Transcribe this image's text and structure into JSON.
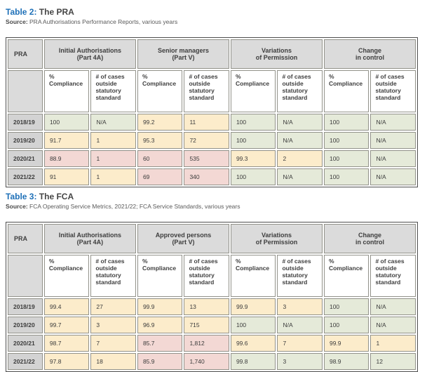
{
  "colors": {
    "title_blue": "#1e70b8",
    "header_gray": "#dbdbdb",
    "year_gray": "#d3d3d3",
    "status_green": "#e5ead9",
    "status_yellow": "#fceccb",
    "status_pink": "#f3d8d4",
    "border_outer": "#4e4e4e",
    "border_inner": "#92928a"
  },
  "subheaders": {
    "compliance": "% Compliance",
    "cases": "# of cases outside statutory standard"
  },
  "tables": [
    {
      "title_label": "Table 2:",
      "title_text": " The PRA",
      "source_label": "Source:",
      "source_text": " PRA Authorisations Performance Reports, various years",
      "corner": "PRA",
      "groups": [
        {
          "l1": "Initial Authorisations",
          "l2": "(Part 4A)"
        },
        {
          "l1": "Senior managers",
          "l2": "(Part V)"
        },
        {
          "l1": "Variations",
          "l2": "of Permission"
        },
        {
          "l1": "Change",
          "l2": "in control"
        }
      ],
      "rows": [
        {
          "year": "2018/19",
          "cells": [
            {
              "v": "100",
              "c": "green"
            },
            {
              "v": "N/A",
              "c": "green"
            },
            {
              "v": "99.2",
              "c": "yellow"
            },
            {
              "v": "11",
              "c": "yellow"
            },
            {
              "v": "100",
              "c": "green"
            },
            {
              "v": "N/A",
              "c": "green"
            },
            {
              "v": "100",
              "c": "green"
            },
            {
              "v": "N/A",
              "c": "green"
            }
          ]
        },
        {
          "year": "2019/20",
          "cells": [
            {
              "v": "91.7",
              "c": "yellow"
            },
            {
              "v": "1",
              "c": "yellow"
            },
            {
              "v": "95.3",
              "c": "yellow"
            },
            {
              "v": "72",
              "c": "yellow"
            },
            {
              "v": "100",
              "c": "green"
            },
            {
              "v": "N/A",
              "c": "green"
            },
            {
              "v": "100",
              "c": "green"
            },
            {
              "v": "N/A",
              "c": "green"
            }
          ]
        },
        {
          "year": "2020/21",
          "cells": [
            {
              "v": "88.9",
              "c": "pink"
            },
            {
              "v": "1",
              "c": "pink"
            },
            {
              "v": "60",
              "c": "pink"
            },
            {
              "v": "535",
              "c": "pink"
            },
            {
              "v": "99.3",
              "c": "yellow"
            },
            {
              "v": "2",
              "c": "yellow"
            },
            {
              "v": "100",
              "c": "green"
            },
            {
              "v": "N/A",
              "c": "green"
            }
          ]
        },
        {
          "year": "2021/22",
          "cells": [
            {
              "v": "91",
              "c": "yellow"
            },
            {
              "v": "1",
              "c": "yellow"
            },
            {
              "v": "69",
              "c": "pink"
            },
            {
              "v": "340",
              "c": "pink"
            },
            {
              "v": "100",
              "c": "green"
            },
            {
              "v": "N/A",
              "c": "green"
            },
            {
              "v": "100",
              "c": "green"
            },
            {
              "v": "N/A",
              "c": "green"
            }
          ]
        }
      ]
    },
    {
      "title_label": "Table 3:",
      "title_text": " The FCA",
      "source_label": "Source:",
      "source_text": " FCA Operating Service Metrics, 2021/22; FCA Service Standards, various years",
      "corner": "PRA",
      "groups": [
        {
          "l1": "Initial Authorisations",
          "l2": "(Part 4A)"
        },
        {
          "l1": "Approved persons",
          "l2": "(Part V)"
        },
        {
          "l1": "Variations",
          "l2": "of Permission"
        },
        {
          "l1": "Change",
          "l2": "in control"
        }
      ],
      "rows": [
        {
          "year": "2018/19",
          "cells": [
            {
              "v": "99.4",
              "c": "yellow"
            },
            {
              "v": "27",
              "c": "yellow"
            },
            {
              "v": "99.9",
              "c": "yellow"
            },
            {
              "v": "13",
              "c": "yellow"
            },
            {
              "v": "99.9",
              "c": "yellow"
            },
            {
              "v": "3",
              "c": "yellow"
            },
            {
              "v": "100",
              "c": "green"
            },
            {
              "v": "N/A",
              "c": "green"
            }
          ]
        },
        {
          "year": "2019/20",
          "cells": [
            {
              "v": "99.7",
              "c": "yellow"
            },
            {
              "v": "3",
              "c": "yellow"
            },
            {
              "v": "96.9",
              "c": "yellow"
            },
            {
              "v": "715",
              "c": "yellow"
            },
            {
              "v": "100",
              "c": "green"
            },
            {
              "v": "N/A",
              "c": "green"
            },
            {
              "v": "100",
              "c": "green"
            },
            {
              "v": "N/A",
              "c": "green"
            }
          ]
        },
        {
          "year": "2020/21",
          "cells": [
            {
              "v": "98.7",
              "c": "yellow"
            },
            {
              "v": "7",
              "c": "yellow"
            },
            {
              "v": "85.7",
              "c": "pink"
            },
            {
              "v": "1,812",
              "c": "pink"
            },
            {
              "v": "99.6",
              "c": "yellow"
            },
            {
              "v": "7",
              "c": "yellow"
            },
            {
              "v": "99.9",
              "c": "yellow"
            },
            {
              "v": "1",
              "c": "yellow"
            }
          ]
        },
        {
          "year": "2021/22",
          "cells": [
            {
              "v": "97.8",
              "c": "yellow"
            },
            {
              "v": "18",
              "c": "yellow"
            },
            {
              "v": "85.9",
              "c": "pink"
            },
            {
              "v": "1,740",
              "c": "pink"
            },
            {
              "v": "99.8",
              "c": "green"
            },
            {
              "v": "3",
              "c": "green"
            },
            {
              "v": "98.9",
              "c": "green"
            },
            {
              "v": "12",
              "c": "green"
            }
          ]
        }
      ]
    }
  ]
}
